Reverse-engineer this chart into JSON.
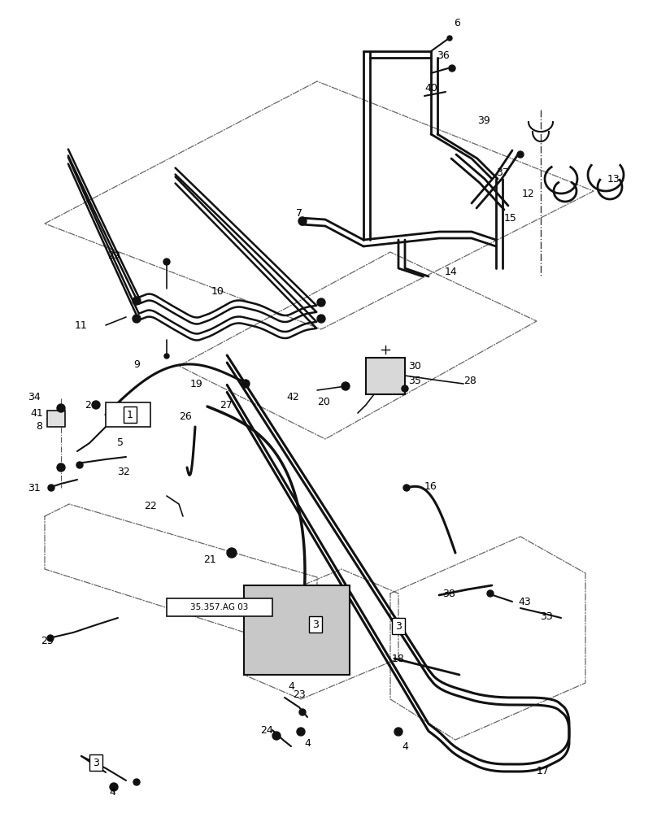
{
  "background_color": "#ffffff",
  "line_color": "#111111",
  "fig_width": 8.08,
  "fig_height": 10.0,
  "dpi": 100
}
